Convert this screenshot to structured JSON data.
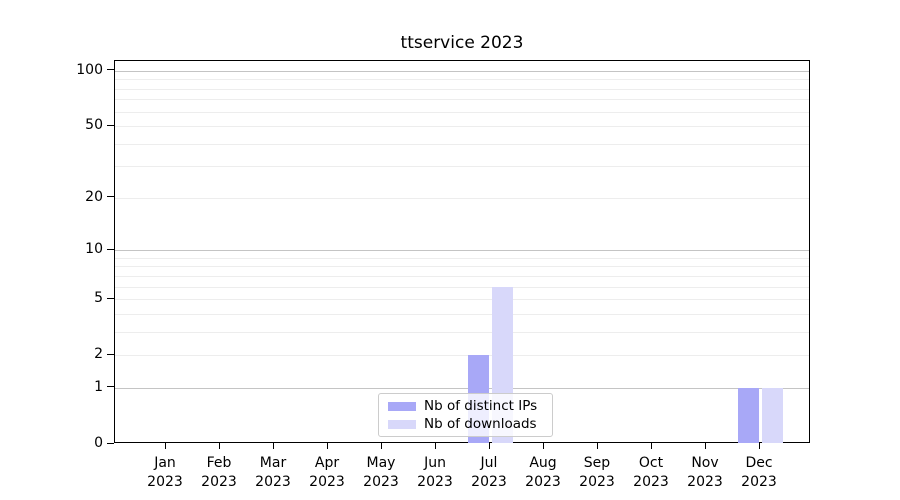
{
  "chart_data": {
    "type": "bar",
    "title": "ttservice 2023",
    "x_ticks": [
      {
        "month": "Jan",
        "year": "2023"
      },
      {
        "month": "Feb",
        "year": "2023"
      },
      {
        "month": "Mar",
        "year": "2023"
      },
      {
        "month": "Apr",
        "year": "2023"
      },
      {
        "month": "May",
        "year": "2023"
      },
      {
        "month": "Jun",
        "year": "2023"
      },
      {
        "month": "Jul",
        "year": "2023"
      },
      {
        "month": "Aug",
        "year": "2023"
      },
      {
        "month": "Sep",
        "year": "2023"
      },
      {
        "month": "Oct",
        "year": "2023"
      },
      {
        "month": "Nov",
        "year": "2023"
      },
      {
        "month": "Dec",
        "year": "2023"
      }
    ],
    "series": [
      {
        "name": "Nb of distinct IPs",
        "color": "#a8a8f7",
        "values": [
          0,
          0,
          0,
          0,
          0,
          0,
          2,
          0,
          0,
          0,
          0,
          1
        ]
      },
      {
        "name": "Nb of downloads",
        "color": "#d8d8fa",
        "values": [
          0,
          0,
          0,
          0,
          0,
          0,
          6,
          0,
          0,
          0,
          0,
          1
        ]
      }
    ],
    "y_axis": {
      "scale": "log1p",
      "tick_values": [
        0,
        1,
        2,
        5,
        10,
        20,
        50,
        100
      ],
      "major_grid_values": [
        1,
        10,
        100
      ],
      "minor_grid_values": [
        2,
        3,
        4,
        5,
        6,
        7,
        8,
        9,
        20,
        30,
        40,
        50,
        60,
        70,
        80,
        90
      ],
      "ylim": [
        0,
        113
      ]
    },
    "legend": {
      "position": "lower center"
    },
    "grid": true
  }
}
